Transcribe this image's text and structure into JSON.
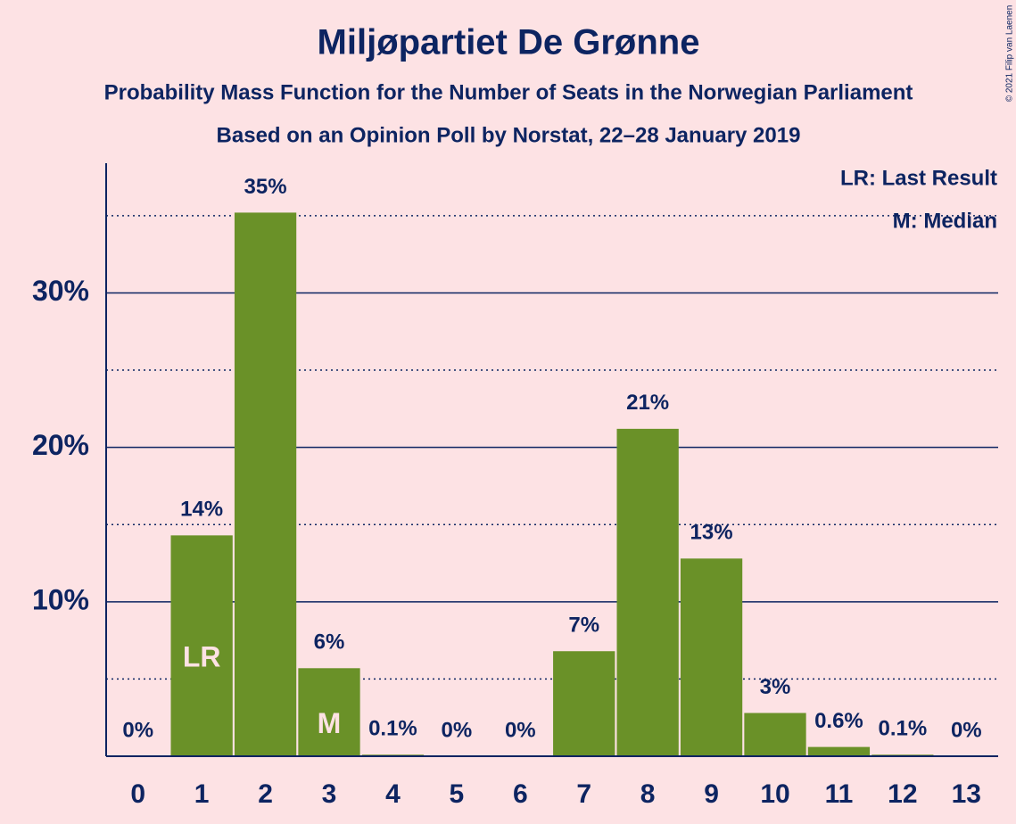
{
  "chart_data": {
    "type": "bar",
    "title": "Miljøpartiet De Grønne",
    "subtitle": "Probability Mass Function for the Number of Seats in the Norwegian Parliament",
    "subtitle2": "Based on an Opinion Poll by Norstat, 22–28 January 2019",
    "copyright": "© 2021 Filip van Laenen",
    "legend": [
      "LR: Last Result",
      "M: Median"
    ],
    "categories": [
      "0",
      "1",
      "2",
      "3",
      "4",
      "5",
      "6",
      "7",
      "8",
      "9",
      "10",
      "11",
      "12",
      "13"
    ],
    "values": [
      0,
      14.3,
      35.2,
      5.7,
      0.1,
      0,
      0,
      6.8,
      21.2,
      12.8,
      2.8,
      0.6,
      0.1,
      0
    ],
    "value_labels": [
      "0%",
      "14%",
      "35%",
      "6%",
      "0.1%",
      "0%",
      "0%",
      "7%",
      "21%",
      "13%",
      "3%",
      "0.6%",
      "0.1%",
      "0%"
    ],
    "bar_labels": [
      null,
      "LR",
      null,
      "M",
      null,
      null,
      null,
      null,
      null,
      null,
      null,
      null,
      null,
      null
    ],
    "color": "#6a9128",
    "ylim": [
      0,
      38.4
    ],
    "yticks": [
      {
        "value": 10,
        "label": "10%"
      },
      {
        "value": 20,
        "label": "20%"
      },
      {
        "value": 30,
        "label": "30%"
      }
    ],
    "minor_gridlines": [
      5,
      15,
      25,
      35
    ],
    "grid": true
  }
}
